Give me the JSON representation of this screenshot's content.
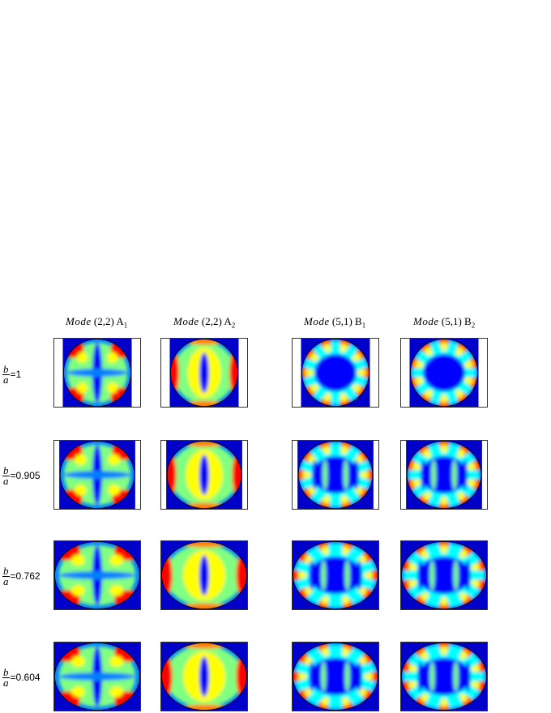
{
  "columns": [
    {
      "mode_word": "Mode",
      "indices": "(2,2)",
      "letter": "A",
      "sub": "1"
    },
    {
      "mode_word": "Mode",
      "indices": "(2,2)",
      "letter": "A",
      "sub": "2"
    },
    {
      "mode_word": "Mode",
      "indices": "(5,1)",
      "letter": "B",
      "sub": "1"
    },
    {
      "mode_word": "Mode",
      "indices": "(5,1)",
      "letter": "B",
      "sub": "2"
    }
  ],
  "rows": [
    {
      "num": "b",
      "den": "a",
      "value": "=1",
      "ratio": 1.0
    },
    {
      "num": "b",
      "den": "a",
      "value": "=0.905",
      "ratio": 0.905
    },
    {
      "num": "b",
      "den": "a",
      "value": "=0.762",
      "ratio": 0.762
    },
    {
      "num": "b",
      "den": "a",
      "value": "=0.604",
      "ratio": 0.604
    }
  ],
  "colors": {
    "colormap": [
      "#00008f",
      "#0000ff",
      "#0080ff",
      "#00ffff",
      "#80ff80",
      "#ffff00",
      "#ff8000",
      "#ff0000",
      "#800000"
    ],
    "background_fill": "#0000c8",
    "ellipse_edge": "#000000"
  }
}
